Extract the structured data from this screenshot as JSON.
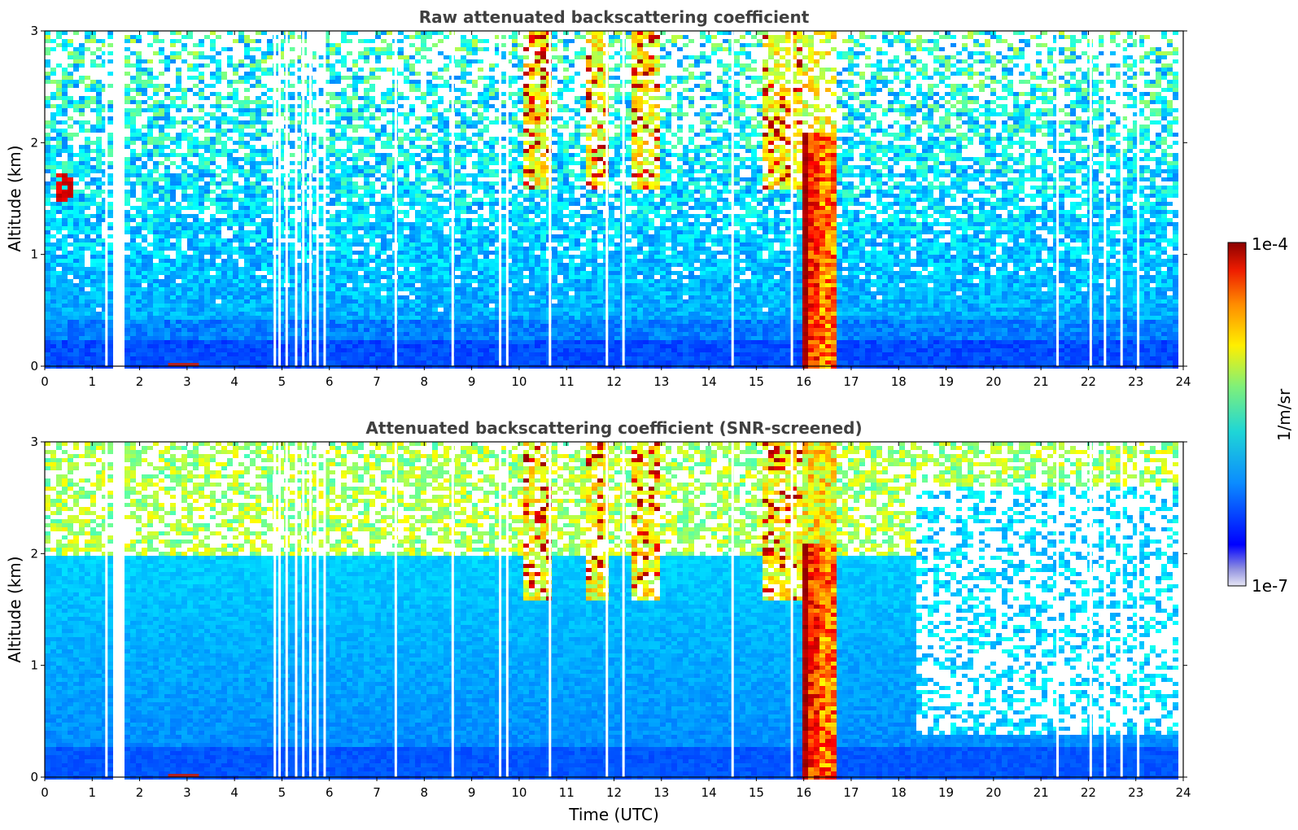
{
  "chart_data": [
    {
      "type": "heatmap",
      "title": "Raw attenuated backscattering coefficient",
      "xlabel": "",
      "ylabel": "Altitude (km)",
      "xlim": [
        0,
        24
      ],
      "ylim": [
        0,
        3
      ],
      "x_ticks": [
        "0",
        "1",
        "2",
        "3",
        "4",
        "5",
        "6",
        "7",
        "8",
        "9",
        "10",
        "11",
        "12",
        "13",
        "14",
        "15",
        "16",
        "17",
        "18",
        "19",
        "20",
        "21",
        "22",
        "23",
        "24"
      ],
      "y_ticks": [
        "0",
        "1",
        "2",
        "3"
      ],
      "features": {
        "boundary_layer_top_km": 0.4,
        "dense_cloud_x": [
          15.9,
          16.6
        ],
        "dense_cloud_top_km": 2.2,
        "high_cirrus_x": [
          [
            10.0,
            10.6
          ],
          [
            11.4,
            11.8
          ],
          [
            12.3,
            12.9
          ],
          [
            15.1,
            15.9
          ]
        ],
        "aerosol_patch": {
          "x": [
            0.2,
            0.5
          ],
          "y_km": [
            1.5,
            1.75
          ]
        },
        "data_gaps_x": [
          1.45,
          1.55,
          8.6,
          14.5
        ]
      }
    },
    {
      "type": "heatmap",
      "title": "Attenuated backscattering coefficient (SNR-screened)",
      "xlabel": "Time (UTC)",
      "ylabel": "Altitude (km)",
      "xlim": [
        0,
        24
      ],
      "ylim": [
        0,
        3
      ],
      "x_ticks": [
        "0",
        "1",
        "2",
        "3",
        "4",
        "5",
        "6",
        "7",
        "8",
        "9",
        "10",
        "11",
        "12",
        "13",
        "14",
        "15",
        "16",
        "17",
        "18",
        "19",
        "20",
        "21",
        "22",
        "23",
        "24"
      ],
      "y_ticks": [
        "0",
        "1",
        "2",
        "3"
      ],
      "features": {
        "screened_top_km": 2.0,
        "late_screened_top_km": 0.4,
        "dense_cloud_x": [
          15.9,
          16.6
        ],
        "high_cirrus_x": [
          [
            10.0,
            10.6
          ],
          [
            11.4,
            11.8
          ],
          [
            12.3,
            12.9
          ],
          [
            15.1,
            15.9
          ]
        ]
      }
    }
  ],
  "colorbar": {
    "max_label": "1e-4",
    "min_label": "1e-7",
    "label": "1/m/sr",
    "colormap": "jet"
  }
}
